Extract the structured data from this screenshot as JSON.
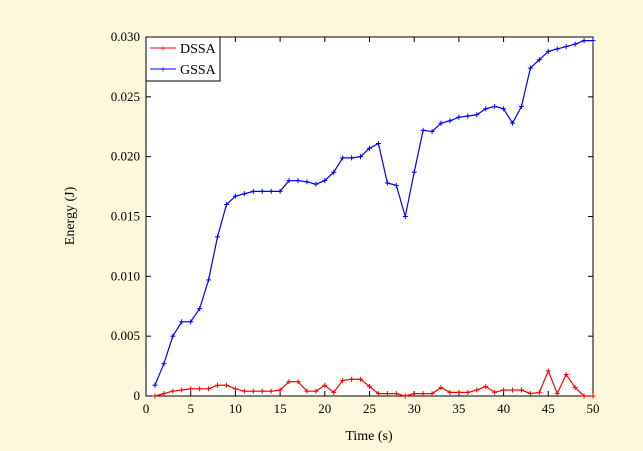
{
  "chart_data": {
    "type": "line",
    "xlabel": "Time (s)",
    "ylabel": "Energy (J)",
    "xlim": [
      0,
      50
    ],
    "ylim": [
      0,
      0.03
    ],
    "xticks": [
      "0",
      "5",
      "10",
      "15",
      "20",
      "25",
      "30",
      "35",
      "40",
      "45",
      "50"
    ],
    "yticks": [
      "0",
      "0.005",
      "0.010",
      "0.015",
      "0.020",
      "0.025",
      "0.030"
    ],
    "grid": false,
    "legend_position": "top-left",
    "x": [
      1,
      2,
      3,
      4,
      5,
      6,
      7,
      8,
      9,
      10,
      11,
      12,
      13,
      14,
      15,
      16,
      17,
      18,
      19,
      20,
      21,
      22,
      23,
      24,
      25,
      26,
      27,
      28,
      29,
      30,
      31,
      32,
      33,
      34,
      35,
      36,
      37,
      38,
      39,
      40,
      41,
      42,
      43,
      44,
      45,
      46,
      47,
      48,
      49,
      50
    ],
    "series": [
      {
        "name": "DSSA",
        "color": "#ff0000",
        "values": [
          0.0,
          0.0002,
          0.0004,
          0.0005,
          0.0006,
          0.0006,
          0.0006,
          0.0009,
          0.0009,
          0.0006,
          0.0004,
          0.0004,
          0.0004,
          0.0004,
          0.0005,
          0.0012,
          0.0012,
          0.0004,
          0.0004,
          0.0009,
          0.0003,
          0.0013,
          0.0014,
          0.0014,
          0.0008,
          0.0002,
          0.0002,
          0.0002,
          0.0,
          0.0002,
          0.0002,
          0.0002,
          0.0007,
          0.0003,
          0.0003,
          0.0003,
          0.0005,
          0.0008,
          0.0003,
          0.0005,
          0.0005,
          0.0005,
          0.0002,
          0.0003,
          0.0021,
          0.0002,
          0.0018,
          0.0007,
          0.0,
          0.0
        ]
      },
      {
        "name": "GSSA",
        "color": "#0000ff",
        "values": [
          0.0009,
          0.0027,
          0.005,
          0.0062,
          0.0062,
          0.0073,
          0.0097,
          0.0133,
          0.016,
          0.0167,
          0.0169,
          0.0171,
          0.0171,
          0.0171,
          0.0171,
          0.018,
          0.018,
          0.0179,
          0.0177,
          0.018,
          0.0187,
          0.0199,
          0.0199,
          0.02,
          0.0207,
          0.0211,
          0.0178,
          0.0176,
          0.015,
          0.0187,
          0.0222,
          0.0221,
          0.0228,
          0.023,
          0.0233,
          0.0234,
          0.0235,
          0.024,
          0.0242,
          0.024,
          0.0228,
          0.0242,
          0.0274,
          0.0281,
          0.0288,
          0.029,
          0.0292,
          0.0294,
          0.0297,
          0.0297
        ]
      }
    ]
  }
}
